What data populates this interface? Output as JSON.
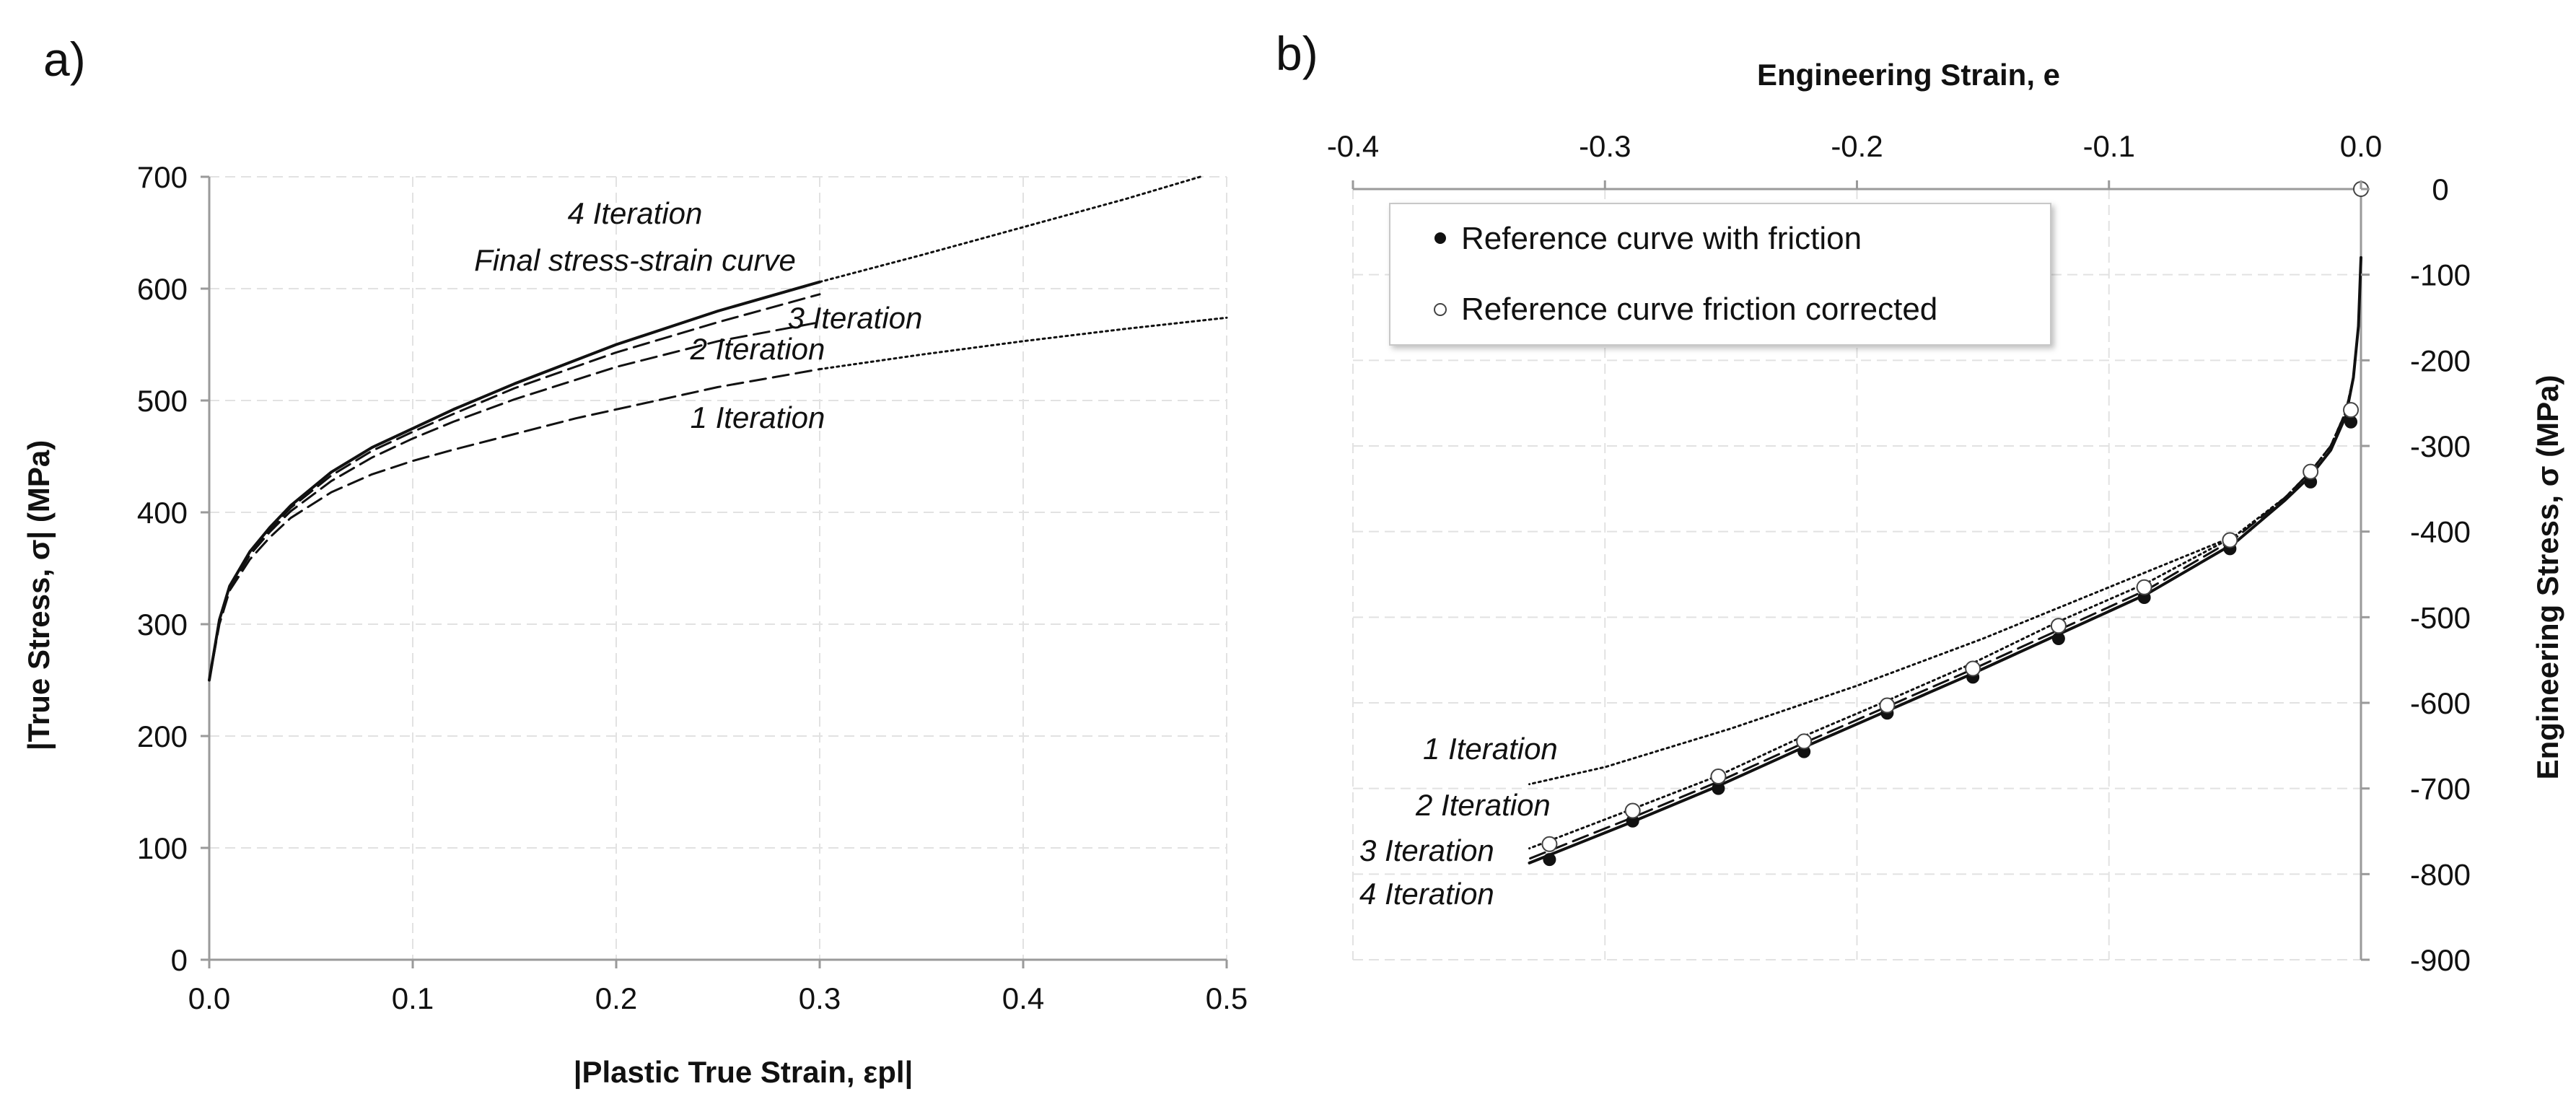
{
  "chart_data": [
    {
      "id": "a",
      "type": "line",
      "panel_label": "a)",
      "xlabel": "|Plastic True Strain, εpl|",
      "ylabel": "|True Stress, σ| (MPa)",
      "xlim": [
        0,
        0.5
      ],
      "ylim": [
        0,
        700
      ],
      "x_ticks": [
        0.0,
        0.1,
        0.2,
        0.3,
        0.4,
        0.5
      ],
      "x_tick_labels": [
        "0.0",
        "0.1",
        "0.2",
        "0.3",
        "0.4",
        "0.5"
      ],
      "y_ticks": [
        0,
        100,
        200,
        300,
        400,
        500,
        600,
        700
      ],
      "y_tick_labels": [
        "0",
        "100",
        "200",
        "300",
        "400",
        "500",
        "600",
        "700"
      ],
      "grid": true,
      "series": [
        {
          "name": "1 Iteration",
          "style": "dashed",
          "x": [
            0,
            0.005,
            0.01,
            0.02,
            0.03,
            0.04,
            0.06,
            0.08,
            0.1,
            0.12,
            0.15,
            0.18,
            0.2,
            0.25,
            0.3
          ],
          "y": [
            250,
            300,
            330,
            358,
            378,
            395,
            418,
            434,
            446,
            456,
            470,
            484,
            492,
            512,
            528
          ]
        },
        {
          "name": "1 Iteration (extrapolated)",
          "style": "dotted",
          "x": [
            0.3,
            0.35,
            0.4,
            0.45,
            0.5
          ],
          "y": [
            528,
            541,
            553,
            564,
            574
          ]
        },
        {
          "name": "2 Iteration",
          "style": "dashed",
          "x": [
            0,
            0.005,
            0.01,
            0.02,
            0.03,
            0.04,
            0.06,
            0.08,
            0.1,
            0.12,
            0.15,
            0.2,
            0.25,
            0.3
          ],
          "y": [
            250,
            302,
            332,
            362,
            383,
            401,
            428,
            449,
            466,
            481,
            501,
            530,
            553,
            570
          ]
        },
        {
          "name": "3 Iteration",
          "style": "dashed",
          "x": [
            0,
            0.005,
            0.01,
            0.02,
            0.03,
            0.04,
            0.06,
            0.08,
            0.1,
            0.12,
            0.15,
            0.2,
            0.25,
            0.3
          ],
          "y": [
            250,
            303,
            333,
            364,
            385,
            404,
            433,
            455,
            472,
            488,
            511,
            543,
            570,
            595
          ]
        },
        {
          "name": "4 Iteration",
          "style": "solid",
          "x": [
            0,
            0.005,
            0.01,
            0.02,
            0.03,
            0.04,
            0.06,
            0.08,
            0.1,
            0.12,
            0.15,
            0.2,
            0.25,
            0.3
          ],
          "y": [
            250,
            304,
            334,
            365,
            387,
            406,
            436,
            458,
            475,
            492,
            515,
            550,
            580,
            606
          ]
        },
        {
          "name": "Final stress-strain curve (extrapolated)",
          "style": "dotted",
          "x": [
            0.3,
            0.35,
            0.4,
            0.45,
            0.487
          ],
          "y": [
            606,
            630,
            655,
            680,
            700
          ]
        }
      ],
      "annotations": [
        "4 Iteration",
        "Final stress-strain curve",
        "3 Iteration",
        "2 Iteration",
        "1 Iteration"
      ]
    },
    {
      "id": "b",
      "type": "line",
      "panel_label": "b)",
      "xlabel": "Engineering Strain, e",
      "ylabel": "Engineering Stress, σ (MPa)",
      "xlim": [
        -0.4,
        0.0
      ],
      "ylim": [
        -900,
        0
      ],
      "x_ticks": [
        -0.4,
        -0.3,
        -0.2,
        -0.1,
        0.0
      ],
      "x_tick_labels": [
        "-0.4",
        "-0.3",
        "-0.2",
        "-0.1",
        "0.0"
      ],
      "y_ticks": [
        0,
        -100,
        -200,
        -300,
        -400,
        -500,
        -600,
        -700,
        -800,
        -900
      ],
      "y_tick_labels": [
        "0",
        "-100",
        "-200",
        "-300",
        "-400",
        "-500",
        "-600",
        "-700",
        "-800",
        "-900"
      ],
      "x_axis_position": "top",
      "y_axis_position": "right",
      "grid": true,
      "legend": {
        "position": "top-left",
        "entries": [
          "Reference curve with friction",
          "Reference curve friction corrected"
        ]
      },
      "series": [
        {
          "name": "1 Iteration",
          "style": "dotted",
          "x": [
            0,
            -0.001,
            -0.003,
            -0.006,
            -0.012,
            -0.02,
            -0.03,
            -0.05,
            -0.1,
            -0.15,
            -0.2,
            -0.25,
            -0.3,
            -0.33
          ],
          "y": [
            -80,
            -160,
            -220,
            -260,
            -300,
            -330,
            -360,
            -405,
            -465,
            -525,
            -580,
            -630,
            -675,
            -695
          ]
        },
        {
          "name": "2 Iteration",
          "style": "dotted",
          "x": [
            0,
            -0.001,
            -0.003,
            -0.006,
            -0.012,
            -0.02,
            -0.03,
            -0.05,
            -0.085,
            -0.12,
            -0.155,
            -0.19,
            -0.222,
            -0.255,
            -0.29,
            -0.33
          ],
          "y": [
            -80,
            -160,
            -220,
            -260,
            -300,
            -330,
            -360,
            -405,
            -460,
            -505,
            -555,
            -600,
            -640,
            -685,
            -725,
            -770
          ]
        },
        {
          "name": "3 Iteration",
          "style": "dashed",
          "x": [
            0,
            -0.001,
            -0.003,
            -0.006,
            -0.012,
            -0.02,
            -0.03,
            -0.05,
            -0.085,
            -0.12,
            -0.155,
            -0.19,
            -0.222,
            -0.255,
            -0.29,
            -0.33
          ],
          "y": [
            -80,
            -160,
            -220,
            -260,
            -300,
            -330,
            -360,
            -408,
            -468,
            -515,
            -562,
            -607,
            -648,
            -692,
            -735,
            -782
          ]
        },
        {
          "name": "4 Iteration",
          "style": "solid",
          "x": [
            0,
            -0.001,
            -0.003,
            -0.006,
            -0.012,
            -0.02,
            -0.03,
            -0.05,
            -0.085,
            -0.12,
            -0.155,
            -0.19,
            -0.222,
            -0.255,
            -0.29,
            -0.33
          ],
          "y": [
            -80,
            -160,
            -220,
            -265,
            -305,
            -335,
            -363,
            -413,
            -473,
            -520,
            -567,
            -612,
            -653,
            -697,
            -740,
            -787
          ]
        },
        {
          "name": "Reference curve with friction",
          "style": "marker-filled",
          "x": [
            -0.004,
            -0.02,
            -0.052,
            -0.086,
            -0.12,
            -0.154,
            -0.188,
            -0.221,
            -0.255,
            -0.289,
            -0.322
          ],
          "y": [
            -272,
            -342,
            -420,
            -477,
            -525,
            -570,
            -612,
            -657,
            -700,
            -738,
            -783
          ]
        },
        {
          "name": "Reference curve friction corrected",
          "style": "marker-open",
          "x": [
            0.0,
            -0.004,
            -0.02,
            -0.052,
            -0.086,
            -0.12,
            -0.154,
            -0.188,
            -0.221,
            -0.255,
            -0.289,
            -0.322
          ],
          "y": [
            0,
            -258,
            -330,
            -410,
            -465,
            -510,
            -560,
            -603,
            -645,
            -686,
            -726,
            -765
          ]
        }
      ],
      "annotations": [
        "1 Iteration",
        "2 Iteration",
        "3 Iteration",
        "4 Iteration"
      ]
    }
  ]
}
